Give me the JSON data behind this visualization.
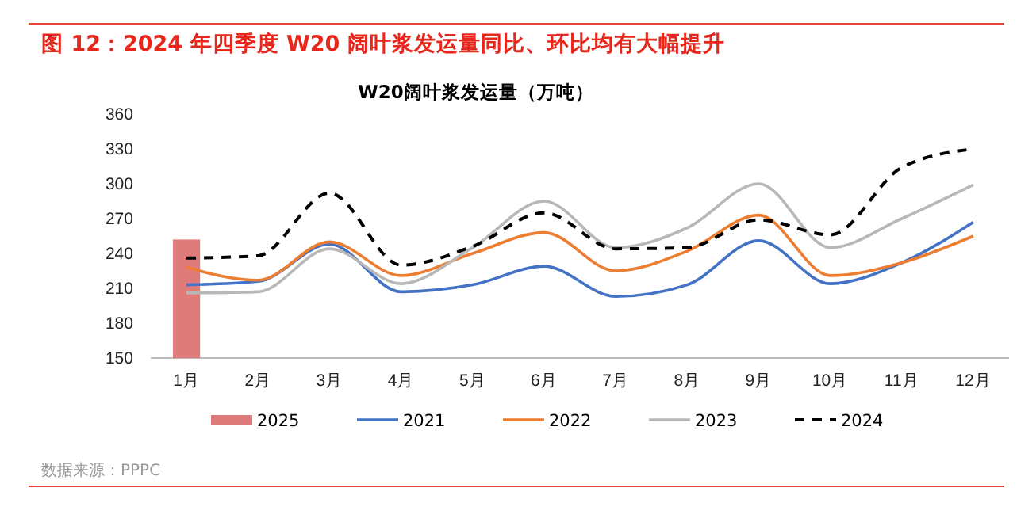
{
  "chart_data": {
    "type": "line",
    "title": "W20阔叶浆发运量（万吨）",
    "subtitle": "图 12：2024 年四季度 W20 阔叶浆发运量同比、环比均有大幅提升",
    "categories": [
      "1月",
      "2月",
      "3月",
      "4月",
      "5月",
      "6月",
      "7月",
      "8月",
      "9月",
      "10月",
      "11月",
      "12月"
    ],
    "series": [
      {
        "name": "2025",
        "type": "bar",
        "color": "#e07b7b",
        "values": [
          252,
          null,
          null,
          null,
          null,
          null,
          null,
          null,
          null,
          null,
          null,
          null
        ]
      },
      {
        "name": "2021",
        "color": "#4472c4",
        "values": [
          213,
          216,
          248,
          207,
          213,
          229,
          203,
          213,
          251,
          214,
          232,
          267
        ]
      },
      {
        "name": "2022",
        "color": "#ed7d31",
        "values": [
          228,
          217,
          250,
          221,
          240,
          258,
          225,
          242,
          273,
          221,
          232,
          255
        ]
      },
      {
        "name": "2023",
        "color": "#b8b8b8",
        "values": [
          206,
          207,
          244,
          214,
          245,
          285,
          245,
          262,
          300,
          245,
          270,
          299
        ]
      },
      {
        "name": "2024",
        "color": "#000000",
        "line_style": "dashed",
        "values": [
          236,
          238,
          292,
          230,
          246,
          275,
          244,
          245,
          269,
          256,
          314,
          330
        ]
      }
    ],
    "ylim": [
      150,
      360
    ],
    "yticks": [
      150,
      180,
      210,
      240,
      270,
      300,
      330,
      360
    ],
    "grid": false,
    "legend": "bottom",
    "annotations": [
      "数据来源：PPPC"
    ]
  }
}
